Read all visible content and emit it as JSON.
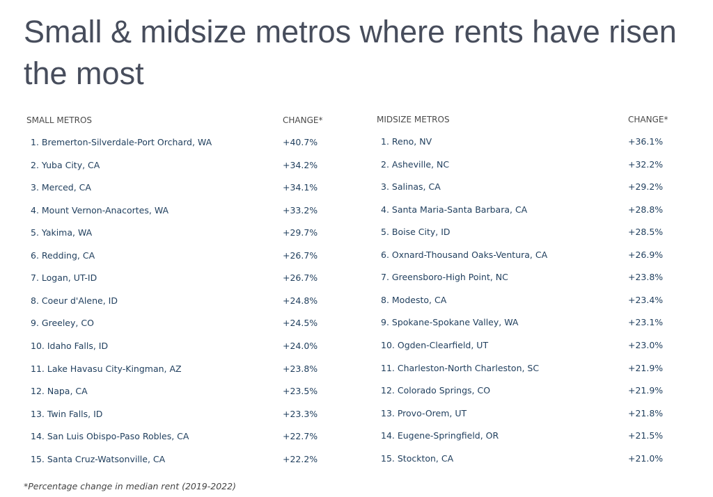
{
  "title": "Small & midsize metros where rents have risen the most",
  "tables": [
    {
      "headers": [
        "SMALL METROS",
        "CHANGE*"
      ],
      "rows": [
        [
          "1. Bremerton-Silverdale-Port Orchard, WA",
          "+40.7%"
        ],
        [
          "2. Yuba City, CA",
          "+34.2%"
        ],
        [
          "3. Merced, CA",
          "+34.1%"
        ],
        [
          "4. Mount Vernon-Anacortes, WA",
          "+33.2%"
        ],
        [
          "5. Yakima, WA",
          "+29.7%"
        ],
        [
          "6. Redding, CA",
          "+26.7%"
        ],
        [
          "7. Logan, UT-ID",
          "+26.7%"
        ],
        [
          "8. Coeur d'Alene, ID",
          "+24.8%"
        ],
        [
          "9. Greeley, CO",
          "+24.5%"
        ],
        [
          "10. Idaho Falls, ID",
          "+24.0%"
        ],
        [
          "11. Lake Havasu City-Kingman, AZ",
          "+23.8%"
        ],
        [
          "12. Napa, CA",
          "+23.5%"
        ],
        [
          "13. Twin Falls, ID",
          "+23.3%"
        ],
        [
          "14. San Luis Obispo-Paso Robles, CA",
          "+22.7%"
        ],
        [
          "15. Santa Cruz-Watsonville, CA",
          "+22.2%"
        ]
      ]
    },
    {
      "headers": [
        "MIDSIZE METROS",
        "CHANGE*"
      ],
      "rows": [
        [
          "1. Reno, NV",
          "+36.1%"
        ],
        [
          "2. Asheville, NC",
          "+32.2%"
        ],
        [
          "3. Salinas, CA",
          "+29.2%"
        ],
        [
          "4. Santa Maria-Santa Barbara, CA",
          "+28.8%"
        ],
        [
          "5. Boise City, ID",
          "+28.5%"
        ],
        [
          "6. Oxnard-Thousand Oaks-Ventura, CA",
          "+26.9%"
        ],
        [
          "7. Greensboro-High Point, NC",
          "+23.8%"
        ],
        [
          "8. Modesto, CA",
          "+23.4%"
        ],
        [
          "9. Spokane-Spokane Valley, WA",
          "+23.1%"
        ],
        [
          "10. Ogden-Clearfield, UT",
          "+23.0%"
        ],
        [
          "11. Charleston-North Charleston, SC",
          "+21.9%"
        ],
        [
          "12. Colorado Springs, CO",
          "+21.9%"
        ],
        [
          "13. Provo-Orem, UT",
          "+21.8%"
        ],
        [
          "14. Eugene-Springfield, OR",
          "+21.5%"
        ],
        [
          "15. Stockton, CA",
          "+21.0%"
        ]
      ]
    }
  ],
  "footnote": "*Percentage change in median rent (2019-2022)"
}
